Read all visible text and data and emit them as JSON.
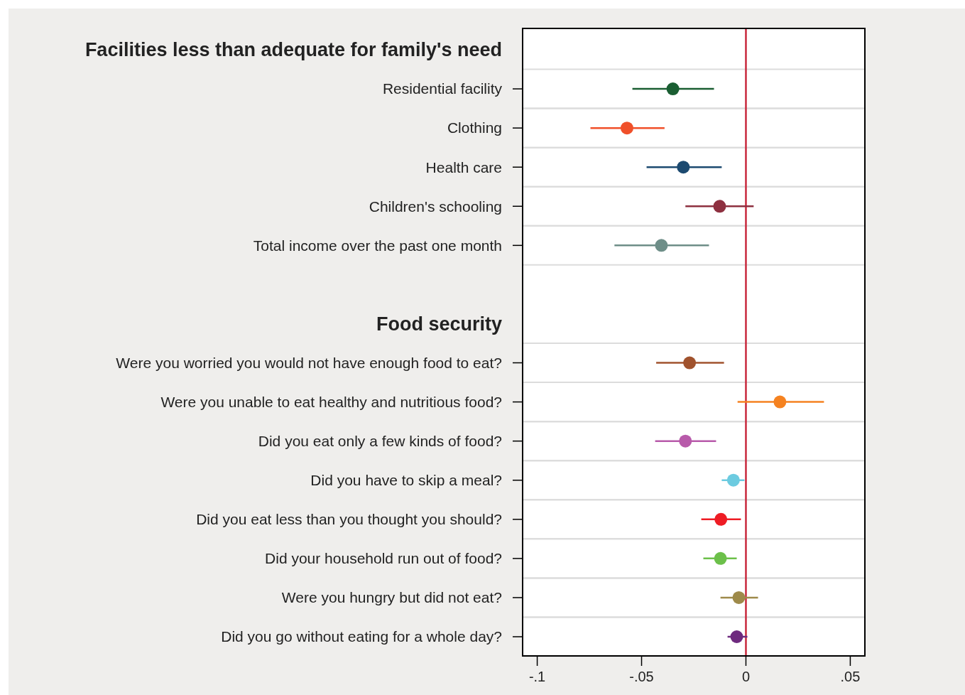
{
  "chart_data": {
    "type": "scatter",
    "orientation": "horizontal",
    "categories": [
      "Facilities less than adequate for family's need",
      "Residential facility",
      "Clothing",
      "Health care",
      "Children's schooling",
      "Total income over the past one month",
      null,
      "Food security",
      "Were you worried you would not have enough food to eat?",
      "Were you unable to eat healthy and nutritious food?",
      "Did you eat only a few kinds of food?",
      "Did you have to skip a meal?",
      "Did you eat less than you thought you should?",
      "Did your household run out of food?",
      "Were you hungry but did not eat?",
      "Did you go without eating for a whole day?"
    ],
    "values": [
      null,
      -0.035,
      -0.057,
      -0.03,
      -0.0126,
      -0.0405,
      null,
      null,
      -0.027,
      0.0163,
      -0.029,
      -0.006,
      -0.012,
      -0.0122,
      -0.0034,
      -0.0044
    ],
    "errors": [
      null,
      [
        -0.0544,
        -0.0153
      ],
      [
        -0.0745,
        -0.039
      ],
      [
        -0.0476,
        -0.0116
      ],
      [
        -0.029,
        0.0037
      ],
      [
        -0.063,
        -0.0177
      ],
      null,
      null,
      [
        -0.043,
        -0.0105
      ],
      [
        -0.004,
        0.0374
      ],
      [
        -0.0435,
        -0.0143
      ],
      [
        -0.0116,
        -0.0007
      ],
      [
        -0.0214,
        -0.0024
      ],
      [
        -0.0204,
        -0.0044
      ],
      [
        -0.0122,
        0.0058
      ],
      [
        -0.0088,
        0.0007
      ]
    ],
    "colors": [
      null,
      "#1a5e32",
      "#f0502a",
      "#1c4a70",
      "#8e3040",
      "#6e8e88",
      null,
      null,
      "#a0522d",
      "#f58220",
      "#b85aaa",
      "#6ccbe0",
      "#ee1c24",
      "#6cc04a",
      "#9e8a4a",
      "#6e2a7e"
    ],
    "xlim": [
      -0.107,
      0.057
    ],
    "xticks": [
      {
        "value": -0.1,
        "label": "-.1"
      },
      {
        "value": -0.05,
        "label": "-.05"
      },
      0,
      {
        "value": 0.05,
        "label": ".05"
      }
    ],
    "ref_lines": [
      {
        "axis": "x",
        "value": 0,
        "color": "#c8283c"
      }
    ],
    "grid": "y",
    "marker": "circle"
  }
}
